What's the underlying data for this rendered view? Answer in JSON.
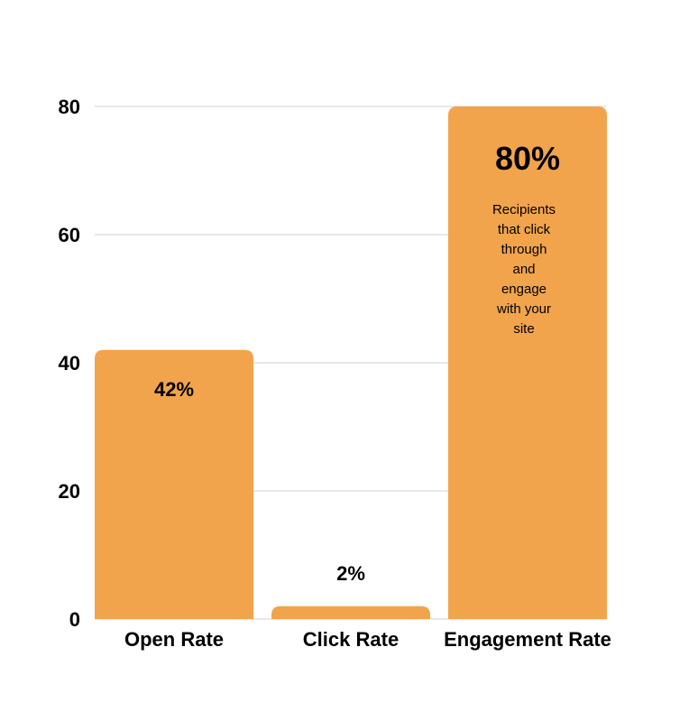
{
  "chart_data": {
    "type": "bar",
    "title": "",
    "xlabel": "",
    "ylabel": "",
    "categories": [
      "Open Rate",
      "Click Rate",
      "Engagement Rate"
    ],
    "values": [
      42,
      2,
      80
    ],
    "data_labels": [
      "42%",
      "2%",
      "80%"
    ],
    "ylim": [
      0,
      80
    ],
    "yticks": [
      0,
      20,
      40,
      60,
      80
    ],
    "ytick_labels": [
      "0",
      "20",
      "40",
      "60",
      "80"
    ],
    "grid": true,
    "bar_color": "#F2A44C",
    "annotation": {
      "category": "Engagement Rate",
      "lines": [
        "Recipients",
        "that click",
        "through",
        "and",
        "engage",
        "with your",
        "site"
      ]
    }
  }
}
